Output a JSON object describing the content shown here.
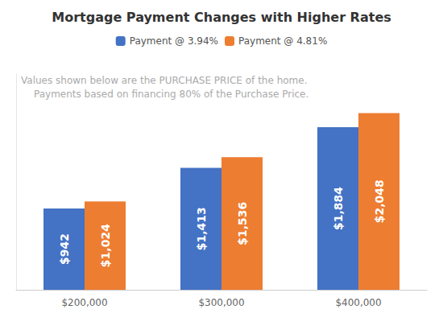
{
  "chart_data": {
    "type": "bar",
    "title": "Mortgage Payment Changes with Higher Rates",
    "annotations": [
      "Values shown below are the PURCHASE PRICE of the home.",
      "Payments based on financing 80% of the Purchase Price."
    ],
    "categories": [
      "$200,000",
      "$300,000",
      "$400,000"
    ],
    "series": [
      {
        "name": "Payment @ 3.94%",
        "color": "#4472C4",
        "values": [
          942,
          1413,
          1884
        ],
        "value_labels": [
          "$942",
          "$1,413",
          "$1,884"
        ]
      },
      {
        "name": "Payment @ 4.81%",
        "color": "#ED7D31",
        "values": [
          1024,
          1536,
          2048
        ],
        "value_labels": [
          "$1,024",
          "$1,536",
          "$2,048"
        ]
      }
    ],
    "ylim": [
      0,
      2500
    ],
    "grid": false,
    "legend": "top",
    "data_labels": true,
    "tick_labels": "x"
  }
}
